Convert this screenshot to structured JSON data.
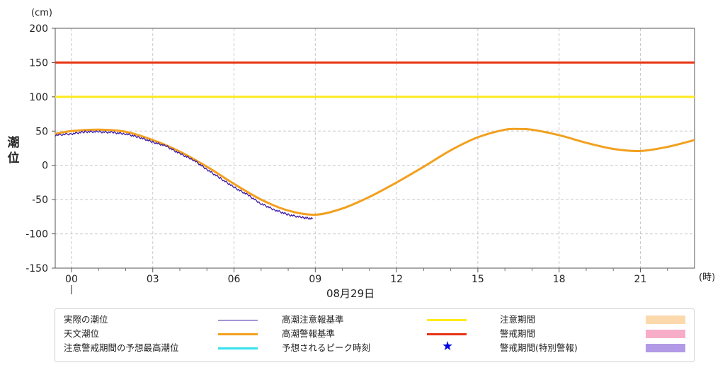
{
  "chart_data": {
    "type": "line",
    "y_unit": "(cm)",
    "x_unit": "(時)",
    "ylabel": [
      "潮",
      "位"
    ],
    "date_label": "08月29日",
    "ylim": [
      -150,
      200
    ],
    "yticks": [
      200,
      150,
      100,
      50,
      0,
      -50,
      -100,
      -150
    ],
    "xlim": [
      -0.6,
      23
    ],
    "xticks": [
      0,
      3,
      6,
      9,
      12,
      15,
      18,
      21
    ],
    "xtick_labels": [
      "00",
      "03",
      "06",
      "09",
      "12",
      "15",
      "18",
      "21"
    ],
    "grid": true,
    "thresholds": [
      {
        "name": "高潮警報基準",
        "value": 150,
        "color": "#e63312"
      },
      {
        "name": "高潮注意報基準",
        "value": 100,
        "color": "#ffeb1a"
      }
    ],
    "series": [
      {
        "name": "天文潮位",
        "color": "#f2a01e",
        "x": [
          -0.6,
          0,
          1,
          2,
          3,
          4,
          5,
          6,
          7,
          8,
          9,
          10,
          11,
          12,
          13,
          14,
          15,
          16,
          16.5,
          17,
          18,
          19,
          20,
          21,
          22,
          23
        ],
        "y": [
          46,
          50,
          52,
          49,
          37,
          20,
          -2,
          -27,
          -50,
          -66,
          -72,
          -63,
          -46,
          -25,
          -2,
          22,
          41,
          52,
          53,
          52,
          44,
          33,
          24,
          21,
          27,
          37
        ]
      },
      {
        "name": "実際の潮位",
        "color": "#3d1aa6",
        "x": [
          -0.6,
          0,
          0.5,
          1,
          1.5,
          2,
          2.5,
          3,
          3.5,
          4,
          4.5,
          5,
          5.5,
          6,
          6.5,
          7,
          7.5,
          8,
          8.5,
          8.9
        ],
        "y": [
          44,
          46,
          49,
          49,
          48,
          46,
          41,
          34,
          28,
          17,
          8,
          -6,
          -19,
          -32,
          -43,
          -56,
          -65,
          -72,
          -76,
          -78
        ]
      }
    ]
  },
  "legend": [
    {
      "label": "実際の潮位",
      "kind": "line",
      "color": "#3d1aa6"
    },
    {
      "label": "天文潮位",
      "kind": "line",
      "color": "#f2a01e"
    },
    {
      "label": "注意警戒期間の予想最高潮位",
      "kind": "line",
      "color": "#33e0ee"
    },
    {
      "label": "高潮注意報基準",
      "kind": "line",
      "color": "#ffeb1a"
    },
    {
      "label": "高潮警報基準",
      "kind": "line",
      "color": "#e63312"
    },
    {
      "label": "予想されるピーク時刻",
      "kind": "star",
      "color": "#0000e6"
    },
    {
      "label": "注意期間",
      "kind": "rect",
      "color": "#fcd9ac"
    },
    {
      "label": "警戒期間",
      "kind": "rect",
      "color": "#f7adc8"
    },
    {
      "label": "警戒期間(特別警報)",
      "kind": "rect",
      "color": "#b39ae6"
    }
  ]
}
